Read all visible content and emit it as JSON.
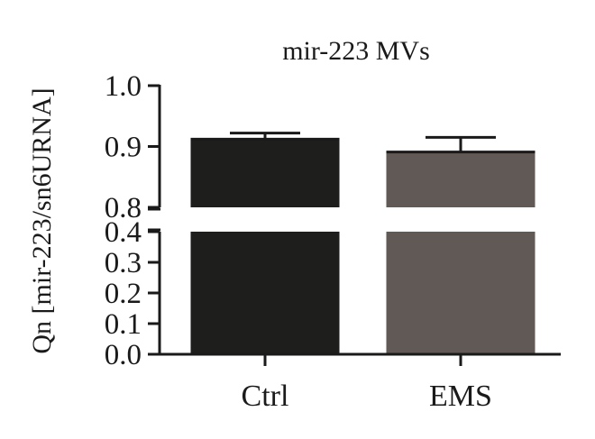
{
  "chart_data": {
    "type": "bar",
    "title": "mir-223 MVs",
    "ylabel": "Qn [mir-223/sn6URNA]",
    "xlabel": "",
    "categories": [
      "Ctrl",
      "EMS"
    ],
    "values": [
      0.912,
      0.891
    ],
    "error_upper": [
      0.922,
      0.915
    ],
    "colors": [
      "#1e1e1c",
      "#615955"
    ],
    "y_axis": {
      "broken": true,
      "lower_range": [
        0.0,
        0.4
      ],
      "upper_range": [
        0.8,
        1.0
      ],
      "lower_ticks": [
        "0.0",
        "0.1",
        "0.2",
        "0.3",
        "0.4"
      ],
      "upper_ticks": [
        "0.8",
        "0.9",
        "1.0"
      ]
    },
    "grid": false,
    "legend": "none"
  }
}
